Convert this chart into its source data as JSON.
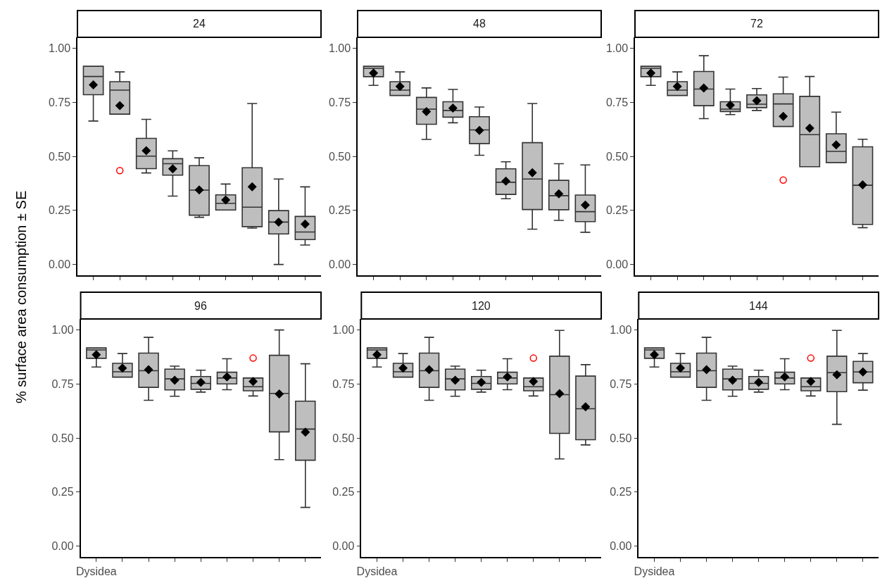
{
  "chart_data": [
    {
      "type": "box",
      "title": "24",
      "ylabel": "% surface area consumption ± SE",
      "categories": [
        null,
        null,
        null,
        null,
        null,
        null,
        null,
        null,
        null
      ],
      "ylim": [
        -0.05,
        1.05
      ],
      "yticks": [
        {
          "value": 0,
          "label": "0.00"
        },
        {
          "value": 0.25,
          "label": "0.25"
        },
        {
          "value": 0.5,
          "label": "0.50"
        },
        {
          "value": 0.75,
          "label": "0.75"
        },
        {
          "value": 1,
          "label": "1.00"
        }
      ],
      "grid": false,
      "series": [
        {
          "color": "#bebebe",
          "boxes": [
            {
              "low": 0.663,
              "q1": 0.785,
              "median": 0.869,
              "q3": 0.916,
              "high": 0.916,
              "mean": 0.83
            },
            {
              "low": 0.695,
              "q1": 0.695,
              "median": 0.806,
              "q3": 0.845,
              "high": 0.89,
              "mean": 0.734,
              "outliers": [
                0.434
              ]
            },
            {
              "low": 0.423,
              "q1": 0.443,
              "median": 0.501,
              "q3": 0.583,
              "high": 0.671,
              "mean": 0.526
            },
            {
              "low": 0.316,
              "q1": 0.413,
              "median": 0.466,
              "q3": 0.489,
              "high": 0.525,
              "mean": 0.442
            },
            {
              "low": 0.218,
              "q1": 0.228,
              "median": 0.344,
              "q3": 0.457,
              "high": 0.493,
              "mean": 0.345
            },
            {
              "low": 0.252,
              "q1": 0.252,
              "median": 0.283,
              "q3": 0.322,
              "high": 0.372,
              "mean": 0.298
            },
            {
              "low": 0.168,
              "q1": 0.175,
              "median": 0.265,
              "q3": 0.447,
              "high": 0.744,
              "mean": 0.359
            },
            {
              "low": 0.0,
              "q1": 0.141,
              "median": 0.196,
              "q3": 0.249,
              "high": 0.395,
              "mean": 0.196
            },
            {
              "low": 0.09,
              "q1": 0.115,
              "median": 0.15,
              "q3": 0.222,
              "high": 0.359,
              "mean": 0.187
            }
          ]
        }
      ]
    },
    {
      "type": "box",
      "title": "48",
      "categories": [
        null,
        null,
        null,
        null,
        null,
        null,
        null,
        null,
        null
      ],
      "ylim": [
        -0.05,
        1.05
      ],
      "yticks": [
        {
          "value": 0,
          "label": "0.00"
        },
        {
          "value": 0.25,
          "label": "0.25"
        },
        {
          "value": 0.5,
          "label": "0.50"
        },
        {
          "value": 0.75,
          "label": "0.75"
        },
        {
          "value": 1,
          "label": "1.00"
        }
      ],
      "grid": false,
      "series": [
        {
          "color": "#bebebe",
          "boxes": [
            {
              "low": 0.828,
              "q1": 0.868,
              "median": 0.907,
              "q3": 0.916,
              "high": 0.916,
              "mean": 0.885
            },
            {
              "low": 0.781,
              "q1": 0.781,
              "median": 0.806,
              "q3": 0.845,
              "high": 0.89,
              "mean": 0.823
            },
            {
              "low": 0.578,
              "q1": 0.648,
              "median": 0.718,
              "q3": 0.772,
              "high": 0.816,
              "mean": 0.707
            },
            {
              "low": 0.655,
              "q1": 0.681,
              "median": 0.712,
              "q3": 0.752,
              "high": 0.809,
              "mean": 0.723
            },
            {
              "low": 0.505,
              "q1": 0.559,
              "median": 0.622,
              "q3": 0.683,
              "high": 0.728,
              "mean": 0.62
            },
            {
              "low": 0.304,
              "q1": 0.324,
              "median": 0.38,
              "q3": 0.442,
              "high": 0.475,
              "mean": 0.385
            },
            {
              "low": 0.163,
              "q1": 0.254,
              "median": 0.395,
              "q3": 0.563,
              "high": 0.744,
              "mean": 0.424
            },
            {
              "low": 0.204,
              "q1": 0.253,
              "median": 0.318,
              "q3": 0.389,
              "high": 0.466,
              "mean": 0.327
            },
            {
              "low": 0.149,
              "q1": 0.198,
              "median": 0.244,
              "q3": 0.321,
              "high": 0.46,
              "mean": 0.275
            }
          ]
        }
      ]
    },
    {
      "type": "box",
      "title": "72",
      "categories": [
        null,
        null,
        null,
        null,
        null,
        null,
        null,
        null,
        null
      ],
      "ylim": [
        -0.05,
        1.05
      ],
      "yticks": [
        {
          "value": 0,
          "label": "0.00"
        },
        {
          "value": 0.25,
          "label": "0.25"
        },
        {
          "value": 0.5,
          "label": "0.50"
        },
        {
          "value": 0.75,
          "label": "0.75"
        },
        {
          "value": 1,
          "label": "1.00"
        }
      ],
      "grid": false,
      "series": [
        {
          "color": "#bebebe",
          "boxes": [
            {
              "low": 0.828,
              "q1": 0.868,
              "median": 0.907,
              "q3": 0.916,
              "high": 0.916,
              "mean": 0.885
            },
            {
              "low": 0.781,
              "q1": 0.781,
              "median": 0.806,
              "q3": 0.845,
              "high": 0.89,
              "mean": 0.823
            },
            {
              "low": 0.674,
              "q1": 0.734,
              "median": 0.811,
              "q3": 0.892,
              "high": 0.965,
              "mean": 0.816
            },
            {
              "low": 0.693,
              "q1": 0.707,
              "median": 0.718,
              "q3": 0.752,
              "high": 0.811,
              "mean": 0.737
            },
            {
              "low": 0.712,
              "q1": 0.725,
              "median": 0.741,
              "q3": 0.784,
              "high": 0.813,
              "mean": 0.757
            },
            {
              "low": 0.638,
              "q1": 0.638,
              "median": 0.742,
              "q3": 0.789,
              "high": 0.866,
              "mean": 0.685,
              "outliers": [
                0.39
              ]
            },
            {
              "low": 0.452,
              "q1": 0.452,
              "median": 0.6,
              "q3": 0.777,
              "high": 0.869,
              "mean": 0.63
            },
            {
              "low": 0.471,
              "q1": 0.471,
              "median": 0.523,
              "q3": 0.604,
              "high": 0.704,
              "mean": 0.553
            },
            {
              "low": 0.17,
              "q1": 0.185,
              "median": 0.366,
              "q3": 0.544,
              "high": 0.579,
              "mean": 0.368
            }
          ]
        }
      ]
    },
    {
      "type": "box",
      "title": "96",
      "categories": [
        "Dysidea",
        null,
        null,
        null,
        null,
        null,
        null,
        null,
        null
      ],
      "ylim": [
        -0.05,
        1.05
      ],
      "yticks": [
        {
          "value": 0,
          "label": "0.00"
        },
        {
          "value": 0.25,
          "label": "0.25"
        },
        {
          "value": 0.5,
          "label": "0.50"
        },
        {
          "value": 0.75,
          "label": "0.75"
        },
        {
          "value": 1,
          "label": "1.00"
        }
      ],
      "grid": false,
      "series": [
        {
          "color": "#bebebe",
          "boxes": [
            {
              "low": 0.828,
              "q1": 0.868,
              "median": 0.907,
              "q3": 0.916,
              "high": 0.916,
              "mean": 0.885
            },
            {
              "low": 0.781,
              "q1": 0.781,
              "median": 0.806,
              "q3": 0.845,
              "high": 0.89,
              "mean": 0.823
            },
            {
              "low": 0.674,
              "q1": 0.734,
              "median": 0.811,
              "q3": 0.892,
              "high": 0.965,
              "mean": 0.816
            },
            {
              "low": 0.693,
              "q1": 0.722,
              "median": 0.773,
              "q3": 0.818,
              "high": 0.832,
              "mean": 0.767
            },
            {
              "low": 0.712,
              "q1": 0.725,
              "median": 0.752,
              "q3": 0.784,
              "high": 0.813,
              "mean": 0.757
            },
            {
              "low": 0.723,
              "q1": 0.75,
              "median": 0.777,
              "q3": 0.804,
              "high": 0.866,
              "mean": 0.782
            },
            {
              "low": 0.694,
              "q1": 0.718,
              "median": 0.737,
              "q3": 0.777,
              "high": 0.777,
              "mean": 0.761,
              "outliers": [
                0.869
              ]
            },
            {
              "low": 0.4,
              "q1": 0.528,
              "median": 0.706,
              "q3": 0.882,
              "high": 0.999,
              "mean": 0.703
            },
            {
              "low": 0.179,
              "q1": 0.397,
              "median": 0.541,
              "q3": 0.67,
              "high": 0.843,
              "mean": 0.527
            }
          ]
        }
      ]
    },
    {
      "type": "box",
      "title": "120",
      "categories": [
        "Dysidea",
        null,
        null,
        null,
        null,
        null,
        null,
        null,
        null
      ],
      "ylim": [
        -0.05,
        1.05
      ],
      "yticks": [
        {
          "value": 0,
          "label": "0.00"
        },
        {
          "value": 0.25,
          "label": "0.25"
        },
        {
          "value": 0.5,
          "label": "0.50"
        },
        {
          "value": 0.75,
          "label": "0.75"
        },
        {
          "value": 1,
          "label": "1.00"
        }
      ],
      "grid": false,
      "series": [
        {
          "color": "#bebebe",
          "boxes": [
            {
              "low": 0.828,
              "q1": 0.868,
              "median": 0.907,
              "q3": 0.916,
              "high": 0.916,
              "mean": 0.885
            },
            {
              "low": 0.781,
              "q1": 0.781,
              "median": 0.806,
              "q3": 0.845,
              "high": 0.89,
              "mean": 0.823
            },
            {
              "low": 0.674,
              "q1": 0.734,
              "median": 0.811,
              "q3": 0.892,
              "high": 0.965,
              "mean": 0.816
            },
            {
              "low": 0.693,
              "q1": 0.722,
              "median": 0.773,
              "q3": 0.818,
              "high": 0.832,
              "mean": 0.767
            },
            {
              "low": 0.712,
              "q1": 0.725,
              "median": 0.752,
              "q3": 0.784,
              "high": 0.813,
              "mean": 0.757
            },
            {
              "low": 0.723,
              "q1": 0.75,
              "median": 0.777,
              "q3": 0.804,
              "high": 0.866,
              "mean": 0.782
            },
            {
              "low": 0.694,
              "q1": 0.718,
              "median": 0.737,
              "q3": 0.777,
              "high": 0.777,
              "mean": 0.761,
              "outliers": [
                0.869
              ]
            },
            {
              "low": 0.403,
              "q1": 0.521,
              "median": 0.7,
              "q3": 0.878,
              "high": 0.997,
              "mean": 0.705
            },
            {
              "low": 0.468,
              "q1": 0.492,
              "median": 0.635,
              "q3": 0.786,
              "high": 0.839,
              "mean": 0.644
            }
          ]
        }
      ]
    },
    {
      "type": "box",
      "title": "144",
      "categories": [
        "Dysidea",
        null,
        null,
        null,
        null,
        null,
        null,
        null,
        null
      ],
      "ylim": [
        -0.05,
        1.05
      ],
      "yticks": [
        {
          "value": 0,
          "label": "0.00"
        },
        {
          "value": 0.25,
          "label": "0.25"
        },
        {
          "value": 0.5,
          "label": "0.50"
        },
        {
          "value": 0.75,
          "label": "0.75"
        },
        {
          "value": 1,
          "label": "1.00"
        }
      ],
      "grid": false,
      "series": [
        {
          "color": "#bebebe",
          "boxes": [
            {
              "low": 0.828,
              "q1": 0.868,
              "median": 0.907,
              "q3": 0.916,
              "high": 0.916,
              "mean": 0.885
            },
            {
              "low": 0.781,
              "q1": 0.781,
              "median": 0.806,
              "q3": 0.845,
              "high": 0.89,
              "mean": 0.823
            },
            {
              "low": 0.674,
              "q1": 0.734,
              "median": 0.811,
              "q3": 0.892,
              "high": 0.965,
              "mean": 0.816
            },
            {
              "low": 0.693,
              "q1": 0.722,
              "median": 0.773,
              "q3": 0.818,
              "high": 0.832,
              "mean": 0.767
            },
            {
              "low": 0.712,
              "q1": 0.725,
              "median": 0.752,
              "q3": 0.784,
              "high": 0.813,
              "mean": 0.757
            },
            {
              "low": 0.723,
              "q1": 0.75,
              "median": 0.777,
              "q3": 0.804,
              "high": 0.866,
              "mean": 0.782
            },
            {
              "low": 0.694,
              "q1": 0.718,
              "median": 0.737,
              "q3": 0.777,
              "high": 0.777,
              "mean": 0.761,
              "outliers": [
                0.869
              ]
            },
            {
              "low": 0.563,
              "q1": 0.714,
              "median": 0.802,
              "q3": 0.878,
              "high": 0.997,
              "mean": 0.792
            },
            {
              "low": 0.721,
              "q1": 0.755,
              "median": 0.805,
              "q3": 0.854,
              "high": 0.89,
              "mean": 0.805
            }
          ]
        }
      ]
    }
  ]
}
